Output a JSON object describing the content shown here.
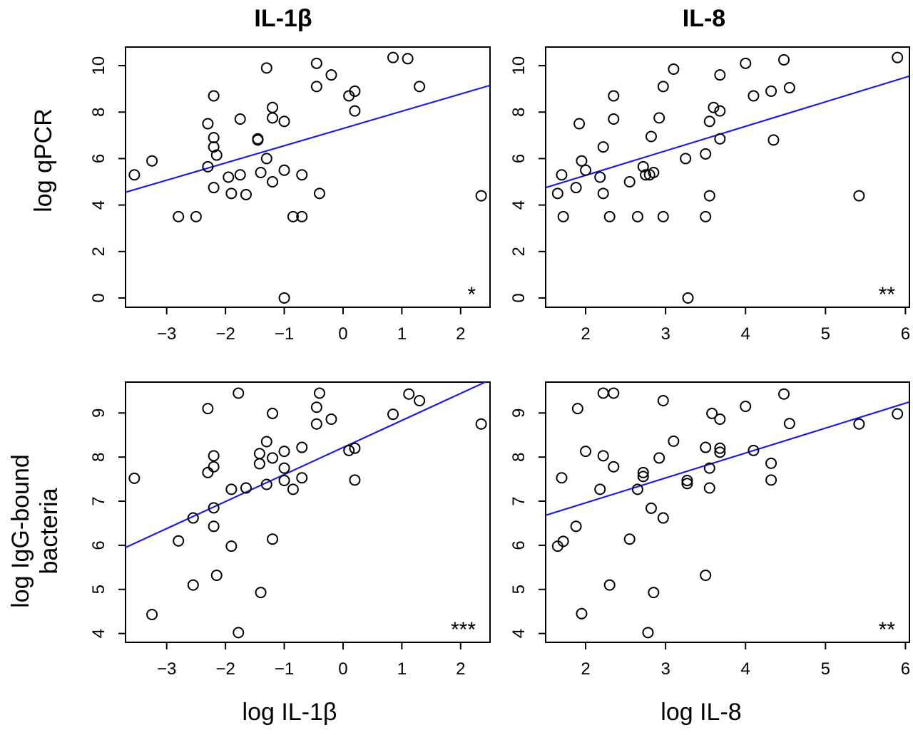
{
  "column_titles": [
    "IL-1β",
    "IL-8"
  ],
  "row_titles": [
    "log qPCR",
    "log IgG-bound",
    "bacteria"
  ],
  "x_axis_titles": [
    "log IL-1β",
    "log IL-8"
  ],
  "colors": {
    "points": "#000000",
    "fit_line": "#1f1fe0",
    "frame": "#000000"
  },
  "chart_data": [
    {
      "type": "scatter",
      "title": "IL-1β",
      "xlabel": "",
      "ylabel": "log qPCR",
      "xlim": [
        -3.7,
        2.5
      ],
      "ylim": [
        -0.4,
        10.8
      ],
      "xticks": [
        -3,
        -2,
        -1,
        0,
        1,
        2
      ],
      "yticks": [
        0,
        2,
        4,
        6,
        8,
        10
      ],
      "annotation": "*",
      "fit": {
        "x": [
          -3.7,
          2.5
        ],
        "y": [
          4.55,
          9.15
        ]
      },
      "points": [
        [
          -3.55,
          5.3
        ],
        [
          -3.25,
          5.9
        ],
        [
          -2.8,
          3.5
        ],
        [
          -2.5,
          3.5
        ],
        [
          -2.3,
          7.5
        ],
        [
          -2.3,
          5.65
        ],
        [
          -2.2,
          8.7
        ],
        [
          -2.2,
          6.9
        ],
        [
          -2.2,
          6.5
        ],
        [
          -2.2,
          4.75
        ],
        [
          -2.15,
          6.15
        ],
        [
          -1.95,
          5.2
        ],
        [
          -1.9,
          4.5
        ],
        [
          -1.75,
          7.7
        ],
        [
          -1.75,
          5.3
        ],
        [
          -1.65,
          4.45
        ],
        [
          -1.45,
          6.85
        ],
        [
          -1.45,
          6.8
        ],
        [
          -1.4,
          5.4
        ],
        [
          -1.3,
          6.0
        ],
        [
          -1.3,
          9.9
        ],
        [
          -1.2,
          8.2
        ],
        [
          -1.2,
          7.75
        ],
        [
          -1.2,
          5.0
        ],
        [
          -1.0,
          7.6
        ],
        [
          -1.0,
          5.5
        ],
        [
          -1.0,
          0.0
        ],
        [
          -0.85,
          3.5
        ],
        [
          -0.7,
          5.3
        ],
        [
          -0.7,
          3.5
        ],
        [
          -0.45,
          10.1
        ],
        [
          -0.45,
          9.1
        ],
        [
          -0.4,
          4.5
        ],
        [
          -0.2,
          9.6
        ],
        [
          0.1,
          8.7
        ],
        [
          0.2,
          8.9
        ],
        [
          0.2,
          8.05
        ],
        [
          0.85,
          10.35
        ],
        [
          1.1,
          10.3
        ],
        [
          1.3,
          9.1
        ],
        [
          2.35,
          4.4
        ]
      ]
    },
    {
      "type": "scatter",
      "title": "IL-8",
      "xlabel": "",
      "ylabel": "",
      "xlim": [
        1.5,
        6.05
      ],
      "ylim": [
        -0.4,
        10.8
      ],
      "xticks": [
        2,
        3,
        4,
        5,
        6
      ],
      "yticks": [
        0,
        2,
        4,
        6,
        8,
        10
      ],
      "annotation": "**",
      "fit": {
        "x": [
          1.5,
          6.05
        ],
        "y": [
          4.75,
          9.55
        ]
      },
      "points": [
        [
          1.65,
          4.5
        ],
        [
          1.7,
          5.3
        ],
        [
          1.72,
          3.5
        ],
        [
          1.88,
          4.75
        ],
        [
          1.92,
          7.5
        ],
        [
          1.95,
          5.9
        ],
        [
          2.0,
          5.5
        ],
        [
          2.18,
          5.2
        ],
        [
          2.22,
          6.5
        ],
        [
          2.22,
          4.5
        ],
        [
          2.3,
          3.5
        ],
        [
          2.35,
          8.7
        ],
        [
          2.35,
          7.7
        ],
        [
          2.55,
          5.0
        ],
        [
          2.65,
          3.5
        ],
        [
          2.72,
          5.65
        ],
        [
          2.75,
          5.3
        ],
        [
          2.8,
          5.3
        ],
        [
          2.82,
          6.95
        ],
        [
          2.85,
          5.4
        ],
        [
          2.92,
          7.75
        ],
        [
          2.97,
          9.1
        ],
        [
          2.97,
          3.5
        ],
        [
          3.1,
          9.85
        ],
        [
          3.25,
          6.0
        ],
        [
          3.28,
          0.0
        ],
        [
          3.5,
          6.2
        ],
        [
          3.5,
          3.5
        ],
        [
          3.55,
          7.6
        ],
        [
          3.55,
          4.4
        ],
        [
          3.6,
          8.2
        ],
        [
          3.68,
          9.6
        ],
        [
          3.68,
          8.05
        ],
        [
          3.68,
          6.85
        ],
        [
          4.0,
          10.1
        ],
        [
          4.1,
          8.7
        ],
        [
          4.32,
          8.9
        ],
        [
          4.35,
          6.8
        ],
        [
          4.48,
          10.25
        ],
        [
          4.55,
          9.05
        ],
        [
          5.42,
          4.4
        ],
        [
          5.9,
          10.35
        ]
      ]
    },
    {
      "type": "scatter",
      "title": "",
      "xlabel": "log IL-1β",
      "ylabel": "log IgG-bound bacteria",
      "xlim": [
        -3.7,
        2.5
      ],
      "ylim": [
        3.8,
        9.7
      ],
      "xticks": [
        -3,
        -2,
        -1,
        0,
        1,
        2
      ],
      "yticks": [
        4,
        5,
        6,
        7,
        8,
        9
      ],
      "annotation": "***",
      "fit": {
        "x": [
          -3.7,
          2.5
        ],
        "y": [
          5.95,
          9.75
        ]
      },
      "points": [
        [
          -3.55,
          7.52
        ],
        [
          -3.25,
          4.43
        ],
        [
          -2.8,
          6.1
        ],
        [
          -2.55,
          5.1
        ],
        [
          -2.55,
          6.62
        ],
        [
          -2.3,
          9.1
        ],
        [
          -2.3,
          7.65
        ],
        [
          -2.2,
          8.03
        ],
        [
          -2.2,
          7.78
        ],
        [
          -2.2,
          6.85
        ],
        [
          -2.2,
          6.43
        ],
        [
          -2.15,
          5.32
        ],
        [
          -1.9,
          7.27
        ],
        [
          -1.9,
          5.98
        ],
        [
          -1.78,
          9.45
        ],
        [
          -1.78,
          4.02
        ],
        [
          -1.65,
          7.3
        ],
        [
          -1.42,
          8.08
        ],
        [
          -1.42,
          7.85
        ],
        [
          -1.4,
          4.93
        ],
        [
          -1.3,
          8.35
        ],
        [
          -1.3,
          7.38
        ],
        [
          -1.2,
          8.99
        ],
        [
          -1.2,
          7.98
        ],
        [
          -1.2,
          6.14
        ],
        [
          -1.0,
          8.13
        ],
        [
          -1.0,
          7.75
        ],
        [
          -1.0,
          7.47
        ],
        [
          -0.85,
          7.27
        ],
        [
          -0.7,
          8.22
        ],
        [
          -0.7,
          7.53
        ],
        [
          -0.45,
          9.13
        ],
        [
          -0.45,
          8.75
        ],
        [
          -0.4,
          9.45
        ],
        [
          -0.2,
          8.86
        ],
        [
          0.1,
          8.15
        ],
        [
          0.2,
          8.2
        ],
        [
          0.2,
          7.48
        ],
        [
          0.85,
          8.97
        ],
        [
          1.12,
          9.43
        ],
        [
          1.3,
          9.28
        ],
        [
          2.35,
          8.75
        ]
      ]
    },
    {
      "type": "scatter",
      "title": "",
      "xlabel": "log IL-8",
      "ylabel": "",
      "xlim": [
        1.5,
        6.05
      ],
      "ylim": [
        3.8,
        9.7
      ],
      "xticks": [
        2,
        3,
        4,
        5,
        6
      ],
      "yticks": [
        4,
        5,
        6,
        7,
        8,
        9
      ],
      "annotation": "**",
      "fit": {
        "x": [
          1.5,
          6.05
        ],
        "y": [
          6.68,
          9.25
        ]
      },
      "points": [
        [
          1.65,
          5.98
        ],
        [
          1.7,
          7.53
        ],
        [
          1.72,
          6.09
        ],
        [
          1.88,
          6.43
        ],
        [
          1.9,
          9.1
        ],
        [
          1.95,
          4.45
        ],
        [
          2.0,
          8.13
        ],
        [
          2.18,
          7.27
        ],
        [
          2.22,
          9.45
        ],
        [
          2.22,
          8.03
        ],
        [
          2.3,
          5.1
        ],
        [
          2.35,
          9.45
        ],
        [
          2.35,
          7.78
        ],
        [
          2.55,
          6.14
        ],
        [
          2.65,
          7.27
        ],
        [
          2.72,
          7.65
        ],
        [
          2.72,
          7.56
        ],
        [
          2.78,
          4.02
        ],
        [
          2.82,
          6.84
        ],
        [
          2.85,
          4.93
        ],
        [
          2.92,
          7.98
        ],
        [
          2.97,
          9.28
        ],
        [
          2.97,
          6.62
        ],
        [
          3.1,
          8.36
        ],
        [
          3.27,
          7.47
        ],
        [
          3.27,
          7.4
        ],
        [
          3.5,
          8.22
        ],
        [
          3.5,
          5.32
        ],
        [
          3.55,
          7.75
        ],
        [
          3.55,
          7.3
        ],
        [
          3.58,
          8.99
        ],
        [
          3.68,
          8.86
        ],
        [
          3.68,
          8.2
        ],
        [
          3.68,
          8.11
        ],
        [
          4.0,
          9.15
        ],
        [
          4.1,
          8.15
        ],
        [
          4.32,
          7.86
        ],
        [
          4.32,
          7.48
        ],
        [
          4.48,
          9.43
        ],
        [
          4.55,
          8.76
        ],
        [
          5.42,
          8.75
        ],
        [
          5.9,
          8.98
        ]
      ]
    }
  ]
}
